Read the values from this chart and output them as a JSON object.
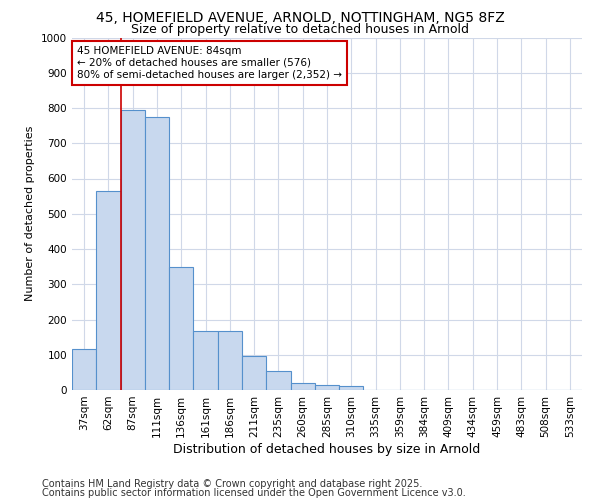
{
  "title1": "45, HOMEFIELD AVENUE, ARNOLD, NOTTINGHAM, NG5 8FZ",
  "title2": "Size of property relative to detached houses in Arnold",
  "xlabel": "Distribution of detached houses by size in Arnold",
  "ylabel": "Number of detached properties",
  "categories": [
    "37sqm",
    "62sqm",
    "87sqm",
    "111sqm",
    "136sqm",
    "161sqm",
    "186sqm",
    "211sqm",
    "235sqm",
    "260sqm",
    "285sqm",
    "310sqm",
    "335sqm",
    "359sqm",
    "384sqm",
    "409sqm",
    "434sqm",
    "459sqm",
    "483sqm",
    "508sqm",
    "533sqm"
  ],
  "values": [
    115,
    565,
    795,
    775,
    350,
    168,
    168,
    97,
    55,
    20,
    15,
    10,
    0,
    0,
    0,
    0,
    0,
    0,
    0,
    0,
    0
  ],
  "bar_color": "#c8d8ee",
  "bar_edge_color": "#5590cc",
  "vline_color": "#cc0000",
  "vline_pos": 1.5,
  "annotation_text": "45 HOMEFIELD AVENUE: 84sqm\n← 20% of detached houses are smaller (576)\n80% of semi-detached houses are larger (2,352) →",
  "annotation_box_color": "#ffffff",
  "annotation_box_edge": "#cc0000",
  "ylim": [
    0,
    1000
  ],
  "yticks": [
    0,
    100,
    200,
    300,
    400,
    500,
    600,
    700,
    800,
    900,
    1000
  ],
  "footer1": "Contains HM Land Registry data © Crown copyright and database right 2025.",
  "footer2": "Contains public sector information licensed under the Open Government Licence v3.0.",
  "bg_color": "#ffffff",
  "plot_bg_color": "#ffffff",
  "grid_color": "#d0d8e8",
  "title1_fontsize": 10,
  "title2_fontsize": 9,
  "ylabel_fontsize": 8,
  "xlabel_fontsize": 9,
  "tick_fontsize": 7.5,
  "footer_fontsize": 7,
  "annot_fontsize": 7.5
}
